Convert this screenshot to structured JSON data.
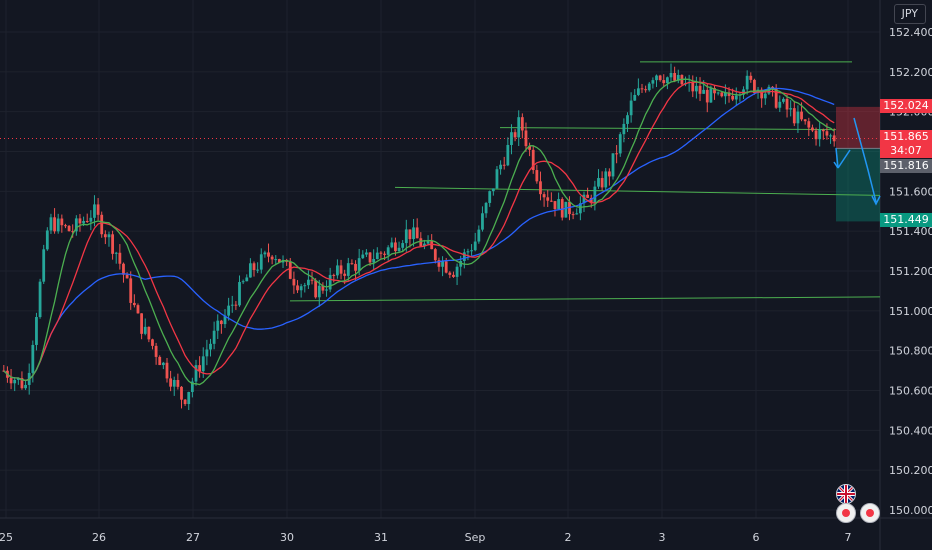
{
  "currency": "JPY",
  "chart_data": {
    "type": "candlestick",
    "symbol_currency": "JPY",
    "ylim": [
      149.95,
      152.45
    ],
    "y_ticks": [
      "152.400",
      "152.200",
      "152.000",
      "151.800",
      "151.600",
      "151.400",
      "151.200",
      "151.000",
      "150.800",
      "150.600",
      "150.400",
      "150.200",
      "150.000"
    ],
    "x_ticks": [
      "25",
      "26",
      "27",
      "30",
      "31",
      "Sep",
      "2",
      "3",
      "6",
      "7"
    ],
    "price_labels": {
      "stop": "152.024",
      "last": "151.865",
      "countdown": "34:07",
      "entry": "151.816",
      "target": "151.449"
    },
    "grid": true,
    "series": [
      {
        "kind": "candles",
        "approx_close_path": [
          150.7,
          150.62,
          151.45,
          151.4,
          151.5,
          151.3,
          150.95,
          150.75,
          150.55,
          150.8,
          151.0,
          151.2,
          151.3,
          151.15,
          151.1,
          151.2,
          151.25,
          151.3,
          151.4,
          151.3,
          151.2,
          151.35,
          151.7,
          151.95,
          151.6,
          151.5,
          151.55,
          151.7,
          152.05,
          152.2,
          152.15,
          152.1,
          152.05,
          152.15,
          152.1,
          152.0,
          151.9,
          151.87
        ]
      },
      {
        "kind": "ma",
        "name": "",
        "color": "#2962ff"
      },
      {
        "kind": "ma",
        "name": "",
        "color": "#f23645"
      },
      {
        "kind": "ma",
        "name": "",
        "color": "#4caf50"
      }
    ]
  },
  "colors": {
    "up": "#26a69a",
    "down": "#ef5350",
    "stop_zone": "#f23645",
    "target_zone": "#089981"
  },
  "icons": [
    "flag-uk-icon",
    "event-icon",
    "event-icon"
  ]
}
